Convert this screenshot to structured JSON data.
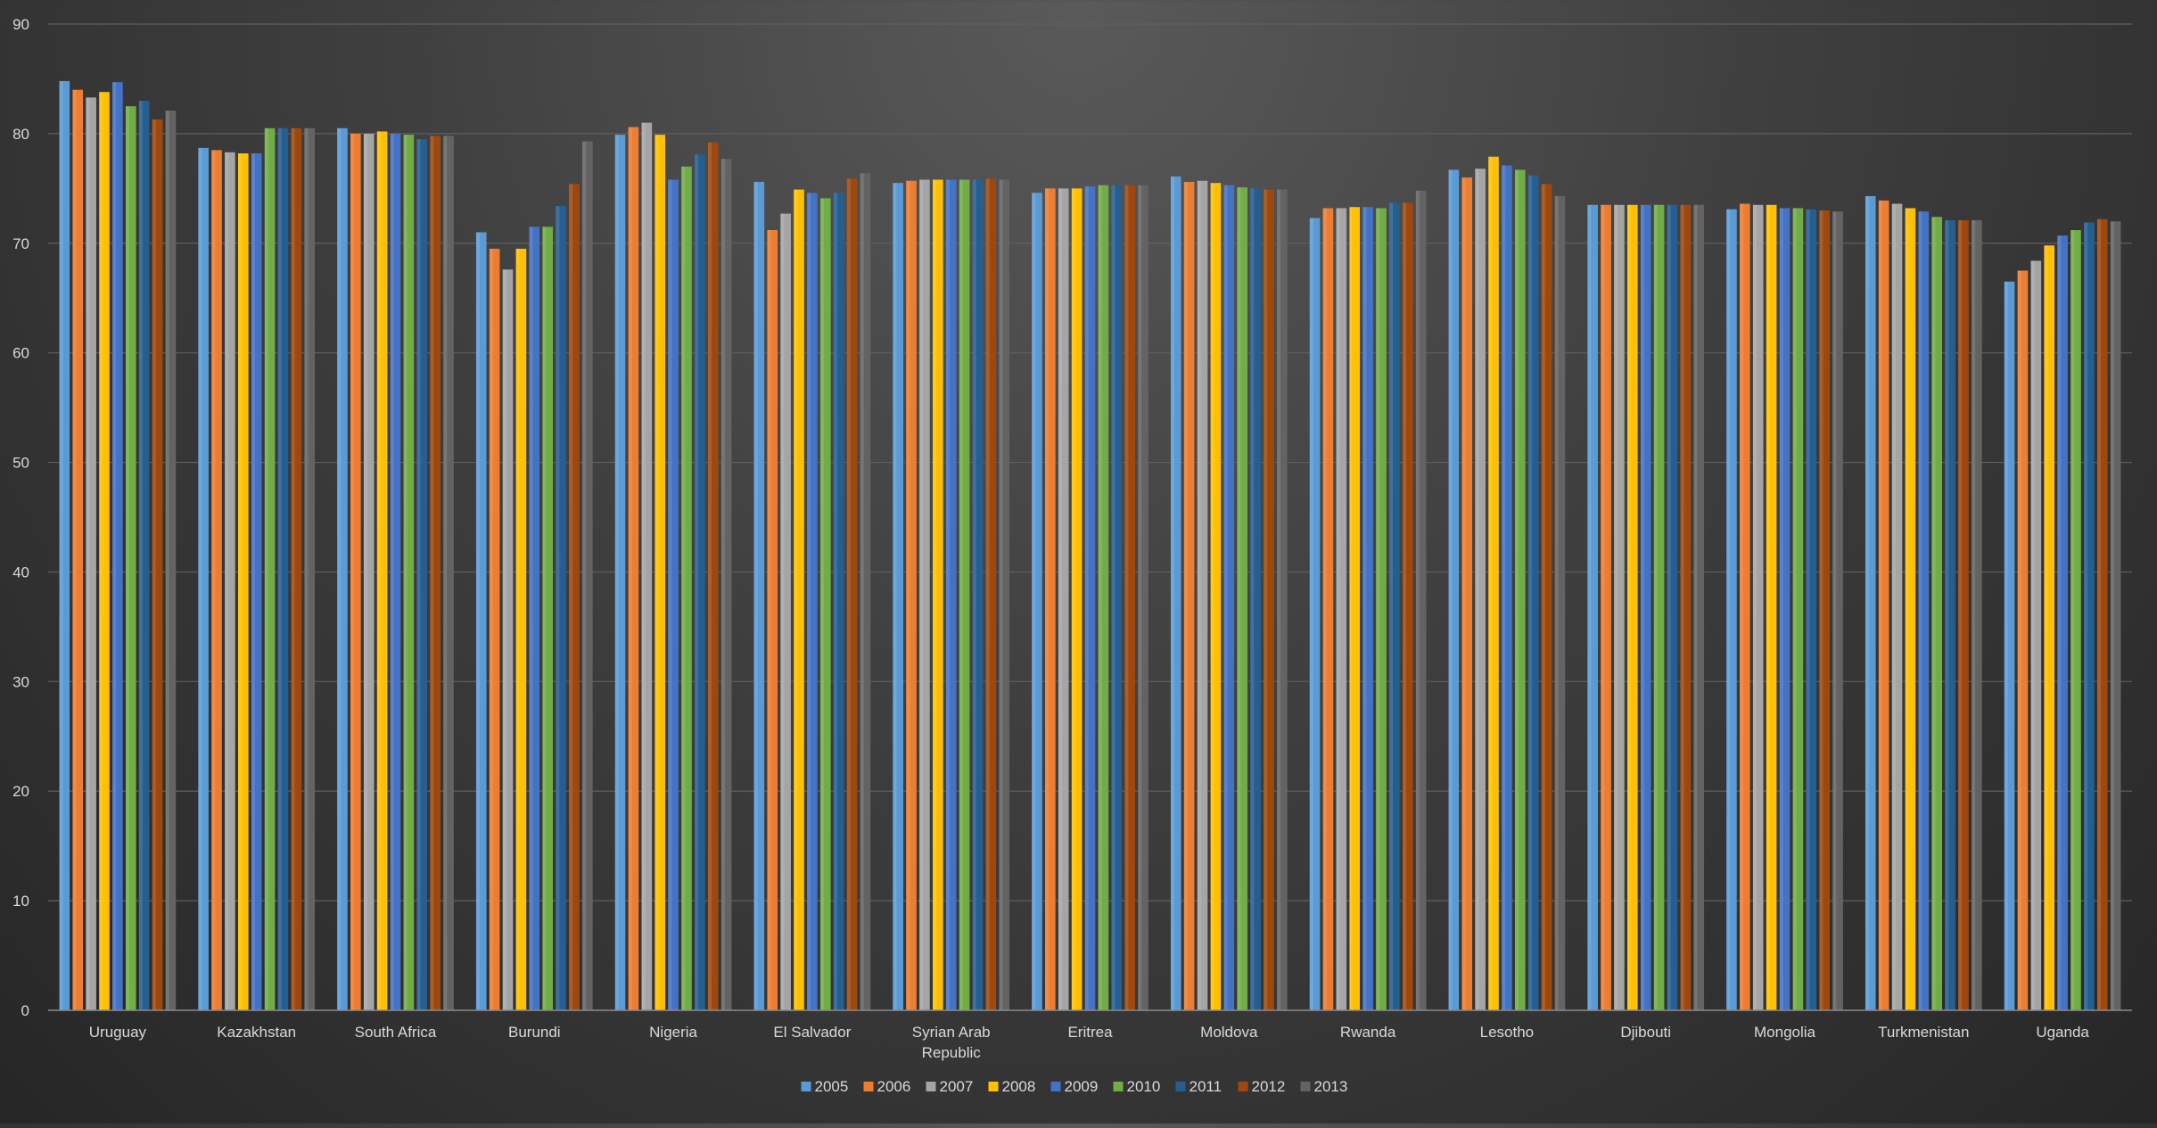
{
  "chart_data": {
    "type": "bar",
    "title": "",
    "xlabel": "",
    "ylabel": "",
    "ylim": [
      0,
      90
    ],
    "yticks": [
      0,
      10,
      20,
      30,
      40,
      50,
      60,
      70,
      80,
      90
    ],
    "grid": true,
    "legend_position": "bottom",
    "categories": [
      "Uruguay",
      "Kazakhstan",
      "South Africa",
      "Burundi",
      "Nigeria",
      "El Salvador",
      "Syrian Arab Republic",
      "Eritrea",
      "Moldova",
      "Rwanda",
      "Lesotho",
      "Djibouti",
      "Mongolia",
      "Turkmenistan",
      "Uganda"
    ],
    "series": [
      {
        "name": "2005",
        "color": "#5b9bd5",
        "values": [
          84.8,
          78.7,
          80.5,
          71.0,
          79.9,
          75.6,
          75.5,
          74.6,
          76.1,
          72.3,
          76.7,
          73.5,
          73.1,
          74.3,
          66.5
        ]
      },
      {
        "name": "2006",
        "color": "#ed7d31",
        "values": [
          84.0,
          78.5,
          80.0,
          69.5,
          80.6,
          71.2,
          75.7,
          75.0,
          75.6,
          73.2,
          76.0,
          73.5,
          73.6,
          73.9,
          67.5
        ]
      },
      {
        "name": "2007",
        "color": "#a5a5a5",
        "values": [
          83.3,
          78.3,
          80.0,
          67.6,
          81.0,
          72.7,
          75.8,
          75.0,
          75.7,
          73.2,
          76.8,
          73.5,
          73.5,
          73.6,
          68.4
        ]
      },
      {
        "name": "2008",
        "color": "#ffc000",
        "values": [
          83.8,
          78.2,
          80.2,
          69.5,
          79.9,
          74.9,
          75.8,
          75.0,
          75.5,
          73.3,
          77.9,
          73.5,
          73.5,
          73.2,
          69.8
        ]
      },
      {
        "name": "2009",
        "color": "#4472c4",
        "values": [
          84.7,
          78.2,
          80.0,
          71.5,
          75.8,
          74.6,
          75.8,
          75.2,
          75.3,
          73.3,
          77.1,
          73.5,
          73.2,
          72.9,
          70.7
        ]
      },
      {
        "name": "2010",
        "color": "#70ad47",
        "values": [
          82.5,
          80.5,
          79.9,
          71.5,
          77.0,
          74.1,
          75.8,
          75.3,
          75.1,
          73.2,
          76.7,
          73.5,
          73.2,
          72.4,
          71.2
        ]
      },
      {
        "name": "2011",
        "color": "#255e91",
        "values": [
          83.0,
          80.5,
          79.5,
          73.4,
          78.1,
          74.6,
          75.8,
          75.3,
          75.0,
          73.7,
          76.2,
          73.5,
          73.1,
          72.1,
          71.9
        ]
      },
      {
        "name": "2012",
        "color": "#9e480e",
        "values": [
          81.3,
          80.5,
          79.8,
          75.4,
          79.2,
          75.9,
          75.9,
          75.3,
          74.9,
          73.7,
          75.4,
          73.5,
          73.0,
          72.1,
          72.2
        ]
      },
      {
        "name": "2013",
        "color": "#636363",
        "values": [
          82.1,
          80.5,
          79.8,
          79.3,
          77.7,
          76.4,
          75.8,
          75.3,
          74.9,
          74.8,
          74.3,
          73.5,
          72.9,
          72.1,
          72.0
        ]
      }
    ]
  }
}
